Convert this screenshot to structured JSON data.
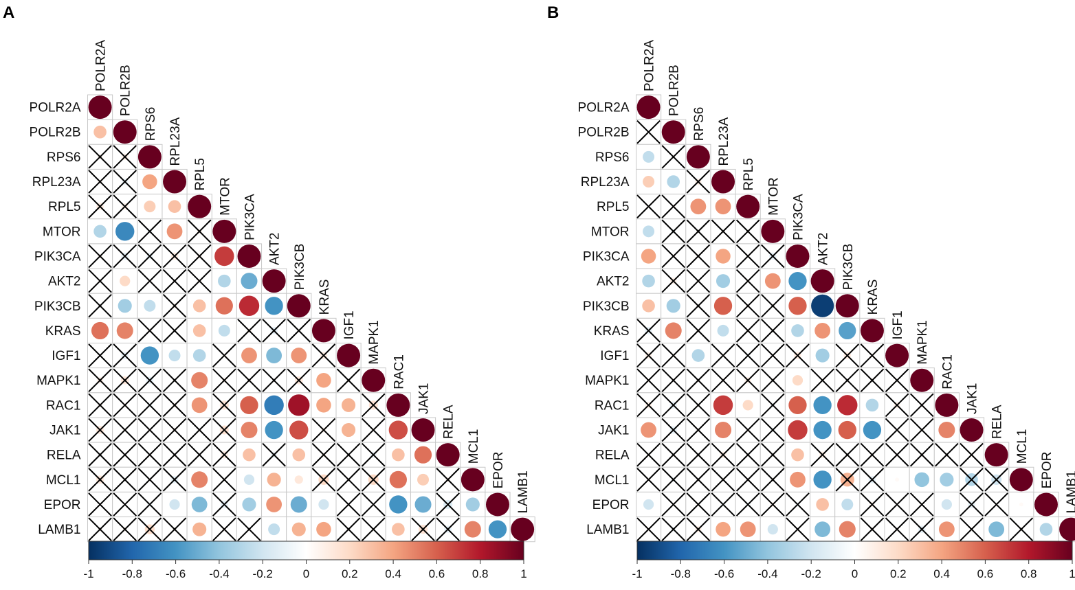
{
  "panels": [
    {
      "label": "A"
    },
    {
      "label": "B"
    }
  ],
  "chart_data": [
    {
      "type": "heatmap",
      "subtype": "correlation-matrix-lower-triangle",
      "panel": "A",
      "title": "",
      "variables": [
        "POLR2A",
        "POLR2B",
        "RPS6",
        "RPL23A",
        "RPL5",
        "MTOR",
        "PIK3CA",
        "AKT2",
        "PIK3CB",
        "KRAS",
        "IGF1",
        "MAPK1",
        "RAC1",
        "JAK1",
        "RELA",
        "MCL1",
        "EPOR",
        "LAMB1"
      ],
      "rows": [
        [
          1
        ],
        [
          0.3,
          1
        ],
        [
          0.05,
          0.08,
          1
        ],
        [
          0.04,
          -0.08,
          0.4,
          1
        ],
        [
          0.1,
          0.08,
          0.25,
          0.3,
          1
        ],
        [
          -0.3,
          -0.65,
          -0.05,
          0.45,
          0.05,
          1
        ],
        [
          0.04,
          -0.1,
          -0.08,
          0.1,
          0.05,
          0.7,
          1
        ],
        [
          0.03,
          0.2,
          0.03,
          0.02,
          0.04,
          -0.3,
          -0.5,
          1
        ],
        [
          0.02,
          -0.35,
          -0.25,
          0.05,
          0.3,
          0.55,
          0.75,
          -0.6,
          1
        ],
        [
          0.55,
          0.5,
          0.04,
          0.02,
          0.3,
          -0.25,
          0.05,
          -0.1,
          0.03,
          1
        ],
        [
          0.02,
          -0.1,
          -0.6,
          -0.25,
          -0.3,
          0.03,
          0.45,
          -0.45,
          0.45,
          0.1,
          1
        ],
        [
          0.08,
          0.12,
          -0.1,
          0.03,
          0.5,
          0.05,
          0.04,
          0.02,
          0.12,
          0.4,
          0.03,
          1
        ],
        [
          0.04,
          0.04,
          -0.05,
          0.05,
          0.45,
          0.15,
          0.6,
          -0.7,
          0.85,
          0.4,
          0.35,
          0.15,
          1
        ],
        [
          0.12,
          0.03,
          0.03,
          0.04,
          0.03,
          0.15,
          0.5,
          -0.6,
          0.65,
          0.05,
          0.35,
          0.03,
          0.65,
          1
        ],
        [
          0.02,
          0.02,
          0.03,
          0.03,
          0.02,
          0.1,
          0.3,
          -0.08,
          0.3,
          0.04,
          0.03,
          -0.08,
          0.3,
          0.55,
          1
        ],
        [
          0.12,
          0.02,
          0.03,
          -0.1,
          0.5,
          0.02,
          -0.2,
          0.35,
          0.13,
          0.2,
          0.03,
          0.2,
          0.55,
          0.25,
          0.05,
          1
        ],
        [
          0.02,
          0.02,
          -0.05,
          -0.2,
          -0.45,
          -0.1,
          -0.35,
          0.45,
          -0.5,
          -0.2,
          0.03,
          0.02,
          -0.6,
          -0.5,
          -0.15,
          -0.35,
          1
        ],
        [
          0.04,
          0.04,
          0.18,
          0.03,
          0.35,
          0.03,
          0.03,
          -0.25,
          0.35,
          0.4,
          0.03,
          0.03,
          0.3,
          0.15,
          -0.1,
          0.5,
          -0.6,
          1
        ]
      ],
      "significant": [
        [
          true
        ],
        [
          true,
          true
        ],
        [
          false,
          false,
          true
        ],
        [
          false,
          false,
          true,
          true
        ],
        [
          false,
          false,
          true,
          true,
          true
        ],
        [
          true,
          true,
          false,
          true,
          false,
          true
        ],
        [
          false,
          false,
          false,
          false,
          false,
          true,
          true
        ],
        [
          false,
          true,
          false,
          false,
          false,
          true,
          true,
          true
        ],
        [
          false,
          true,
          true,
          false,
          true,
          true,
          true,
          true,
          true
        ],
        [
          true,
          true,
          false,
          false,
          true,
          true,
          false,
          false,
          false,
          true
        ],
        [
          false,
          false,
          true,
          true,
          true,
          false,
          true,
          true,
          true,
          false,
          true
        ],
        [
          false,
          false,
          false,
          false,
          true,
          false,
          false,
          false,
          false,
          true,
          false,
          true
        ],
        [
          false,
          false,
          false,
          false,
          true,
          false,
          true,
          true,
          true,
          true,
          true,
          false,
          true
        ],
        [
          false,
          false,
          false,
          false,
          false,
          false,
          true,
          true,
          true,
          false,
          true,
          false,
          true,
          true
        ],
        [
          false,
          false,
          false,
          false,
          false,
          false,
          true,
          false,
          true,
          false,
          false,
          false,
          true,
          true,
          true
        ],
        [
          false,
          false,
          false,
          false,
          true,
          false,
          true,
          true,
          true,
          false,
          false,
          false,
          true,
          true,
          false,
          true
        ],
        [
          false,
          false,
          false,
          true,
          true,
          false,
          true,
          true,
          true,
          true,
          false,
          false,
          true,
          true,
          false,
          true,
          true
        ],
        [
          false,
          false,
          false,
          false,
          true,
          false,
          false,
          true,
          true,
          true,
          false,
          false,
          true,
          false,
          false,
          true,
          true,
          true
        ]
      ],
      "colorbar": {
        "range": [
          -1,
          1
        ],
        "ticks": [
          "-1",
          "-0.8",
          "-0.6",
          "-0.4",
          "-0.2",
          "0",
          "0.2",
          "0.4",
          "0.6",
          "0.8",
          "1"
        ]
      }
    },
    {
      "type": "heatmap",
      "subtype": "correlation-matrix-lower-triangle",
      "panel": "B",
      "title": "",
      "variables": [
        "POLR2A",
        "POLR2B",
        "RPS6",
        "RPL23A",
        "RPL5",
        "MTOR",
        "PIK3CA",
        "AKT2",
        "PIK3CB",
        "KRAS",
        "IGF1",
        "MAPK1",
        "RAC1",
        "JAK1",
        "RELA",
        "MCL1",
        "EPOR",
        "LAMB1"
      ],
      "rows": [
        [
          1
        ],
        [
          0.02,
          1
        ],
        [
          -0.25,
          0.03,
          1
        ],
        [
          0.25,
          -0.3,
          0.08,
          1
        ],
        [
          0.02,
          0.03,
          0.45,
          0.45,
          1
        ],
        [
          -0.25,
          -0.05,
          0.03,
          0.03,
          0.03,
          1
        ],
        [
          0.4,
          0.03,
          0.03,
          0.4,
          0.03,
          -0.1,
          1
        ],
        [
          -0.3,
          0.08,
          0.03,
          -0.35,
          0.03,
          0.45,
          -0.6,
          1
        ],
        [
          0.3,
          -0.35,
          0.03,
          0.6,
          0.04,
          0.03,
          0.6,
          -0.95,
          1
        ],
        [
          -0.1,
          0.5,
          0.03,
          -0.25,
          0.03,
          0.03,
          -0.3,
          0.45,
          -0.55,
          1
        ],
        [
          0.08,
          0.03,
          -0.3,
          0.03,
          -0.05,
          0.03,
          0.1,
          -0.35,
          0.1,
          0.03,
          1
        ],
        [
          0.03,
          0.03,
          0.03,
          0.03,
          0.08,
          0.03,
          0.2,
          0.03,
          0.03,
          0.03,
          0.03,
          1
        ],
        [
          0.08,
          -0.1,
          0.03,
          0.7,
          0.2,
          -0.05,
          0.6,
          -0.6,
          0.75,
          -0.3,
          0.08,
          0.03,
          1
        ],
        [
          0.45,
          -0.1,
          0.03,
          0.5,
          0.03,
          -0.05,
          0.7,
          -0.6,
          0.6,
          -0.6,
          0.03,
          0.03,
          0.5,
          1
        ],
        [
          0.03,
          0.03,
          0.03,
          0.08,
          0.03,
          0.03,
          0.3,
          0.08,
          0.03,
          0.03,
          0.03,
          0.03,
          0.03,
          0.03,
          1
        ],
        [
          0.03,
          -0.05,
          0.03,
          0.03,
          0.03,
          0.03,
          0.45,
          -0.6,
          0.35,
          -0.1,
          0.03,
          -0.4,
          -0.35,
          -0.3,
          -0.2,
          1
        ],
        [
          -0.2,
          0.03,
          0.03,
          -0.05,
          -0.05,
          0.05,
          -0.05,
          0.3,
          -0.25,
          0.05,
          0.03,
          0.03,
          -0.2,
          -0.1,
          0.03,
          0.03,
          1
        ],
        [
          0.03,
          -0.05,
          0.08,
          0.4,
          0.45,
          -0.2,
          0.03,
          -0.45,
          0.5,
          0.03,
          0.03,
          -0.1,
          0.45,
          0.03,
          -0.45,
          0.03,
          -0.3,
          1
        ]
      ],
      "significant": [
        [
          true
        ],
        [
          false,
          true
        ],
        [
          true,
          false,
          true
        ],
        [
          true,
          true,
          false,
          true
        ],
        [
          false,
          false,
          true,
          true,
          true
        ],
        [
          true,
          false,
          false,
          false,
          false,
          true
        ],
        [
          true,
          false,
          false,
          true,
          false,
          false,
          true
        ],
        [
          true,
          false,
          false,
          true,
          false,
          true,
          true,
          true
        ],
        [
          true,
          true,
          false,
          true,
          false,
          false,
          true,
          true,
          true
        ],
        [
          false,
          true,
          false,
          true,
          false,
          false,
          true,
          true,
          true,
          true
        ],
        [
          false,
          false,
          true,
          false,
          false,
          false,
          false,
          true,
          false,
          false,
          true
        ],
        [
          false,
          false,
          false,
          false,
          false,
          false,
          true,
          false,
          false,
          false,
          false,
          true
        ],
        [
          false,
          false,
          false,
          true,
          true,
          false,
          true,
          true,
          true,
          true,
          false,
          false,
          true
        ],
        [
          true,
          false,
          false,
          true,
          false,
          false,
          true,
          true,
          true,
          true,
          false,
          false,
          true,
          true
        ],
        [
          false,
          false,
          false,
          false,
          false,
          false,
          true,
          false,
          false,
          false,
          false,
          false,
          false,
          false,
          true
        ],
        [
          false,
          false,
          false,
          false,
          false,
          false,
          true,
          true,
          false,
          false,
          true,
          true,
          true,
          false,
          false,
          true
        ],
        [
          true,
          false,
          false,
          false,
          false,
          false,
          false,
          true,
          true,
          false,
          false,
          false,
          true,
          false,
          false,
          true,
          true
        ],
        [
          false,
          false,
          false,
          true,
          true,
          true,
          false,
          true,
          true,
          false,
          false,
          false,
          true,
          false,
          true,
          false,
          true,
          true
        ]
      ],
      "colorbar": {
        "range": [
          -1,
          1
        ],
        "ticks": [
          "-1",
          "-0.8",
          "-0.6",
          "-0.4",
          "-0.2",
          "0",
          "0.2",
          "0.4",
          "0.6",
          "0.8",
          "1"
        ]
      }
    }
  ]
}
